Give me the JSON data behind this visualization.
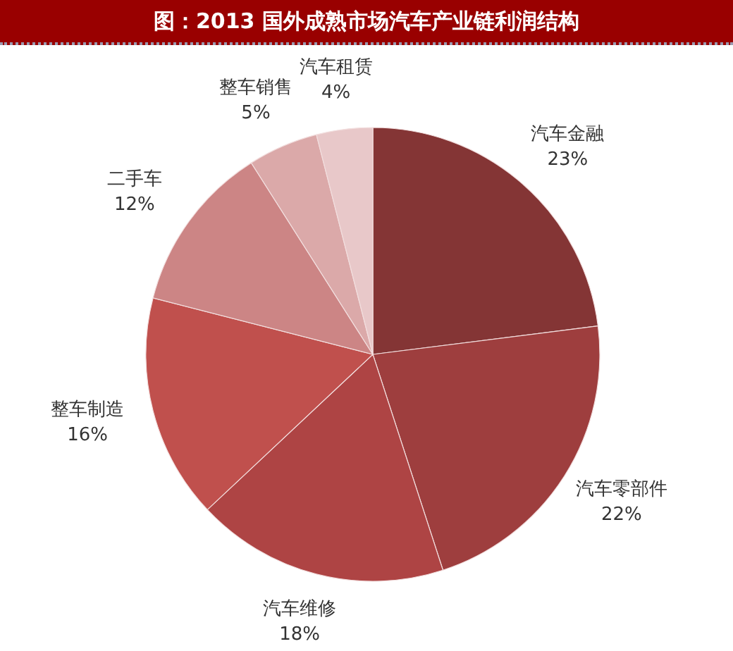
{
  "chart_data": {
    "type": "pie",
    "title": "图：2013 国外成熟市场汽车产业链利润结构",
    "categories": [
      "汽车金融",
      "汽车零部件",
      "汽车维修",
      "整车制造",
      "二手车",
      "整车销售",
      "汽车租赁"
    ],
    "values": [
      23,
      22,
      18,
      16,
      12,
      5,
      4
    ],
    "colors": [
      "#843535",
      "#9e3e3e",
      "#ae4444",
      "#c0504d",
      "#cc8585",
      "#dba9a9",
      "#e8c8c9"
    ],
    "value_labels": [
      "23%",
      "22%",
      "18%",
      "16%",
      "12%",
      "5%",
      "4%"
    ]
  }
}
